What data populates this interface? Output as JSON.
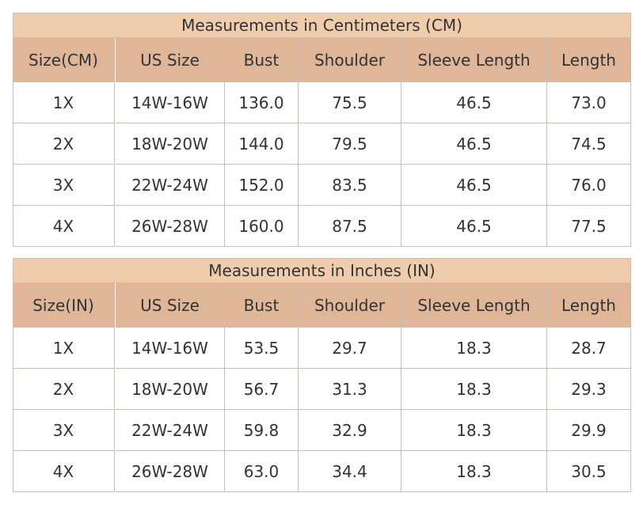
{
  "tables": [
    {
      "title": "Measurements in Centimeters (CM)",
      "header": [
        "Size(CM)",
        "US Size",
        "Bust",
        "Shoulder",
        "Sleeve Length",
        "Length"
      ],
      "rows": [
        [
          "1X",
          "14W-16W",
          "136.0",
          "75.5",
          "46.5",
          "73.0"
        ],
        [
          "2X",
          "18W-20W",
          "144.0",
          "79.5",
          "46.5",
          "74.5"
        ],
        [
          "3X",
          "22W-24W",
          "152.0",
          "83.5",
          "46.5",
          "76.0"
        ],
        [
          "4X",
          "26W-28W",
          "160.0",
          "87.5",
          "46.5",
          "77.5"
        ]
      ]
    },
    {
      "title": "Measurements in Inches (IN)",
      "header": [
        "Size(IN)",
        "US Size",
        "Bust",
        "Shoulder",
        "Sleeve Length",
        "Length"
      ],
      "rows": [
        [
          "1X",
          "14W-16W",
          "53.5",
          "29.7",
          "18.3",
          "28.7"
        ],
        [
          "2X",
          "18W-20W",
          "56.7",
          "31.3",
          "18.3",
          "29.3"
        ],
        [
          "3X",
          "22W-24W",
          "59.8",
          "32.9",
          "18.3",
          "29.9"
        ],
        [
          "4X",
          "26W-28W",
          "63.0",
          "34.4",
          "18.3",
          "30.5"
        ]
      ]
    }
  ]
}
